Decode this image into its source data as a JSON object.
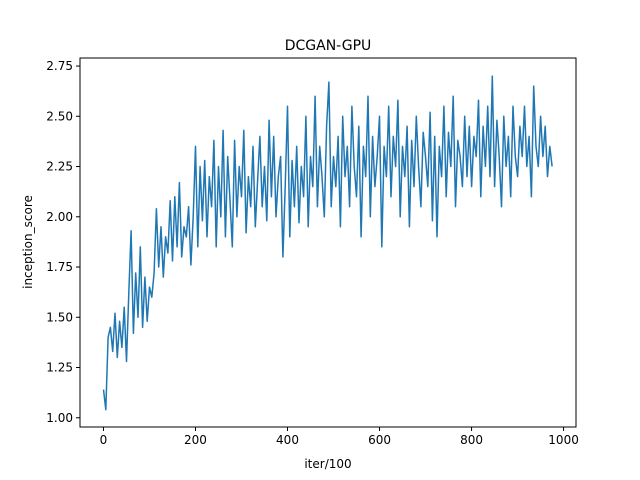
{
  "chart_data": {
    "type": "line",
    "title": "DCGAN-GPU",
    "xlabel": "iter/100",
    "ylabel": "inception_score",
    "xlim": [
      -51,
      1027
    ],
    "ylim": [
      0.954,
      2.79
    ],
    "xticks": [
      0,
      200,
      400,
      600,
      800,
      1000
    ],
    "xtick_labels": [
      "0",
      "200",
      "400",
      "600",
      "800",
      "1000"
    ],
    "yticks": [
      1.0,
      1.25,
      1.5,
      1.75,
      2.0,
      2.25,
      2.5,
      2.75
    ],
    "ytick_labels": [
      "1.00",
      "1.25",
      "1.50",
      "1.75",
      "2.00",
      "2.25",
      "2.50",
      "2.75"
    ],
    "grid": false,
    "color": "#1f77b4",
    "x": [
      0,
      5,
      10,
      15,
      20,
      25,
      30,
      35,
      40,
      45,
      50,
      55,
      60,
      65,
      70,
      75,
      80,
      85,
      90,
      95,
      100,
      105,
      110,
      115,
      120,
      125,
      130,
      135,
      140,
      145,
      150,
      155,
      160,
      165,
      170,
      175,
      180,
      185,
      190,
      195,
      200,
      205,
      210,
      215,
      220,
      225,
      230,
      235,
      240,
      245,
      250,
      255,
      260,
      265,
      270,
      275,
      280,
      285,
      290,
      295,
      300,
      305,
      310,
      315,
      320,
      325,
      330,
      335,
      340,
      345,
      350,
      355,
      360,
      365,
      370,
      375,
      380,
      385,
      390,
      395,
      400,
      405,
      410,
      415,
      420,
      425,
      430,
      435,
      440,
      445,
      450,
      455,
      460,
      465,
      470,
      475,
      480,
      485,
      490,
      495,
      500,
      505,
      510,
      515,
      520,
      525,
      530,
      535,
      540,
      545,
      550,
      555,
      560,
      565,
      570,
      575,
      580,
      585,
      590,
      595,
      600,
      605,
      610,
      615,
      620,
      625,
      630,
      635,
      640,
      645,
      650,
      655,
      660,
      665,
      670,
      675,
      680,
      685,
      690,
      695,
      700,
      705,
      710,
      715,
      720,
      725,
      730,
      735,
      740,
      745,
      750,
      755,
      760,
      765,
      770,
      775,
      780,
      785,
      790,
      795,
      800,
      805,
      810,
      815,
      820,
      825,
      830,
      835,
      840,
      845,
      850,
      855,
      860,
      865,
      870,
      875,
      880,
      885,
      890,
      895,
      900,
      905,
      910,
      915,
      920,
      925,
      930,
      935,
      940,
      945,
      950,
      955,
      960,
      965,
      970,
      975
    ],
    "values": [
      1.14,
      1.04,
      1.4,
      1.45,
      1.33,
      1.52,
      1.3,
      1.48,
      1.35,
      1.55,
      1.28,
      1.62,
      1.93,
      1.42,
      1.72,
      1.5,
      1.85,
      1.45,
      1.7,
      1.48,
      1.65,
      1.6,
      1.72,
      2.04,
      1.75,
      1.95,
      1.7,
      1.9,
      1.82,
      2.08,
      1.78,
      2.1,
      1.85,
      2.17,
      1.8,
      1.95,
      1.9,
      2.05,
      1.76,
      2.0,
      2.35,
      1.85,
      2.25,
      1.98,
      2.28,
      1.9,
      2.2,
      2.05,
      2.38,
      1.85,
      2.25,
      2.0,
      2.43,
      1.9,
      2.3,
      2.08,
      1.85,
      2.38,
      2.0,
      2.25,
      2.1,
      2.43,
      1.92,
      2.2,
      2.05,
      2.35,
      1.95,
      2.18,
      2.4,
      2.05,
      2.25,
      1.98,
      2.48,
      2.1,
      2.4,
      2.0,
      2.2,
      2.3,
      1.8,
      2.15,
      2.55,
      1.9,
      2.28,
      2.05,
      2.35,
      1.97,
      2.25,
      2.1,
      2.5,
      1.95,
      2.3,
      2.15,
      2.6,
      2.05,
      2.35,
      2.2,
      2.0,
      2.45,
      2.67,
      2.05,
      2.3,
      2.15,
      2.4,
      1.95,
      2.5,
      2.2,
      2.35,
      2.05,
      2.55,
      2.25,
      2.1,
      2.45,
      1.9,
      2.35,
      2.2,
      2.6,
      2.0,
      2.4,
      2.15,
      2.3,
      2.5,
      1.85,
      2.35,
      2.2,
      2.55,
      2.1,
      2.4,
      2.25,
      2.58,
      2.0,
      2.35,
      2.2,
      2.45,
      1.95,
      2.38,
      2.15,
      2.5,
      2.25,
      2.05,
      2.42,
      2.3,
      2.15,
      2.52,
      1.98,
      2.4,
      1.9,
      2.35,
      2.2,
      2.55,
      2.1,
      2.42,
      2.25,
      2.6,
      2.05,
      2.38,
      2.3,
      2.15,
      2.5,
      2.2,
      2.45,
      2.15,
      2.4,
      2.3,
      2.58,
      2.1,
      2.45,
      2.25,
      2.55,
      2.2,
      2.7,
      2.15,
      2.48,
      2.3,
      2.05,
      2.5,
      2.25,
      2.4,
      2.1,
      2.55,
      2.3,
      2.2,
      2.45,
      2.3,
      2.55,
      2.25,
      2.4,
      2.1,
      2.65,
      2.35,
      2.25,
      2.5,
      2.3,
      2.45,
      2.2,
      2.35,
      2.25
    ]
  }
}
